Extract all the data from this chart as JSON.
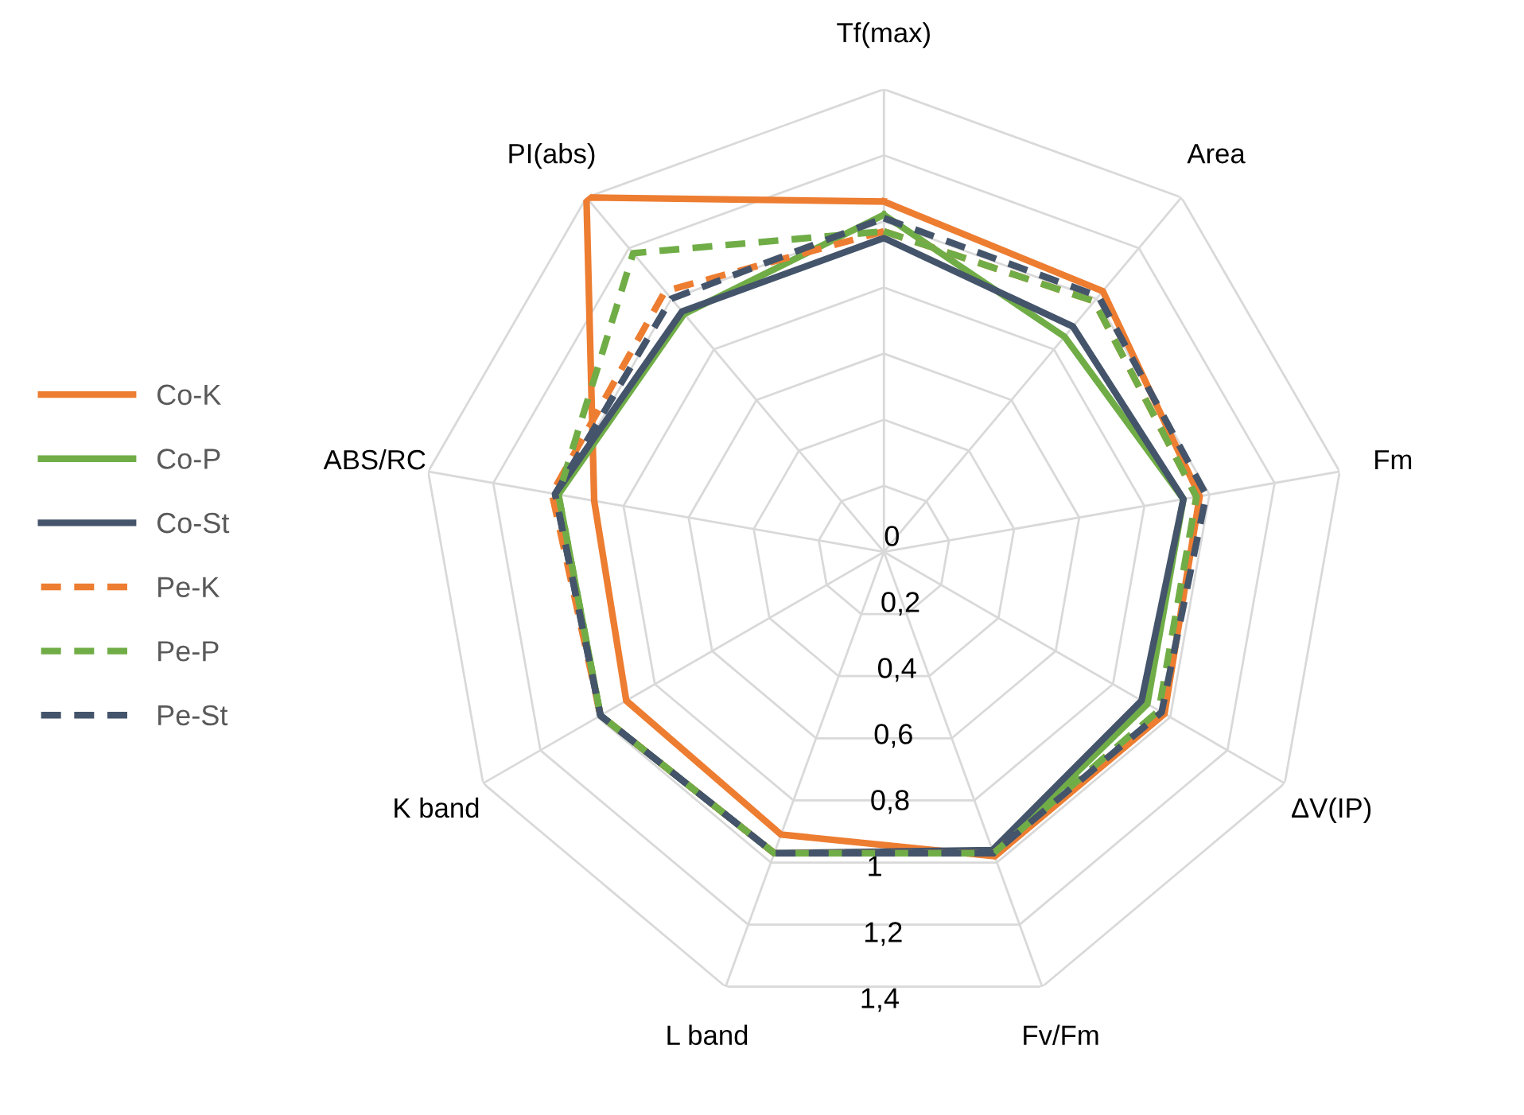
{
  "chart_data": {
    "type": "radar",
    "categories": [
      "Tf(max)",
      "Area",
      "Fm",
      "ΔV(IP)",
      "Fv/Fm",
      "L band",
      "K band",
      "ABS/RC",
      "PI(abs)"
    ],
    "ylim": [
      0,
      1.4
    ],
    "yticks": [
      0,
      {
        "value": 0.2,
        "label": "0,2"
      },
      {
        "value": 0.4,
        "label": "0,4"
      },
      {
        "value": 0.6,
        "label": "0,6"
      },
      {
        "value": 0.8,
        "label": "0,8"
      },
      1,
      {
        "value": 1.2,
        "label": "1,2"
      },
      {
        "value": 1.4,
        "label": "1,4"
      }
    ],
    "grid": true,
    "legend": "left",
    "marker": "none",
    "series": [
      {
        "name": "Co-K",
        "color": "#ed7d31",
        "line_style": "solid",
        "values": [
          1.06,
          1.03,
          0.97,
          0.98,
          0.98,
          0.91,
          0.9,
          0.89,
          1.4
        ]
      },
      {
        "name": "Co-P",
        "color": "#70ad47",
        "line_style": "solid",
        "values": [
          1.02,
          0.85,
          0.92,
          0.92,
          0.97,
          0.97,
          0.99,
          1.0,
          0.94
        ]
      },
      {
        "name": "Co-St",
        "color": "#44546a",
        "line_style": "solid",
        "values": [
          0.95,
          0.89,
          0.92,
          0.9,
          0.96,
          0.97,
          0.99,
          1.01,
          0.95
        ]
      },
      {
        "name": "Pe-K",
        "color": "#ed7d31",
        "line_style": "dashed",
        "values": [
          0.97,
          0.99,
          0.96,
          0.97,
          0.97,
          0.97,
          0.99,
          1.02,
          1.03
        ]
      },
      {
        "name": "Pe-P",
        "color": "#70ad47",
        "line_style": "dashed",
        "values": [
          0.97,
          0.99,
          0.96,
          0.96,
          0.97,
          0.97,
          0.99,
          1.0,
          1.18
        ]
      },
      {
        "name": "Pe-St",
        "color": "#44546a",
        "line_style": "dashed",
        "values": [
          1.01,
          1.01,
          0.99,
          0.97,
          0.97,
          0.97,
          0.99,
          1.01,
          1.0
        ]
      }
    ]
  }
}
